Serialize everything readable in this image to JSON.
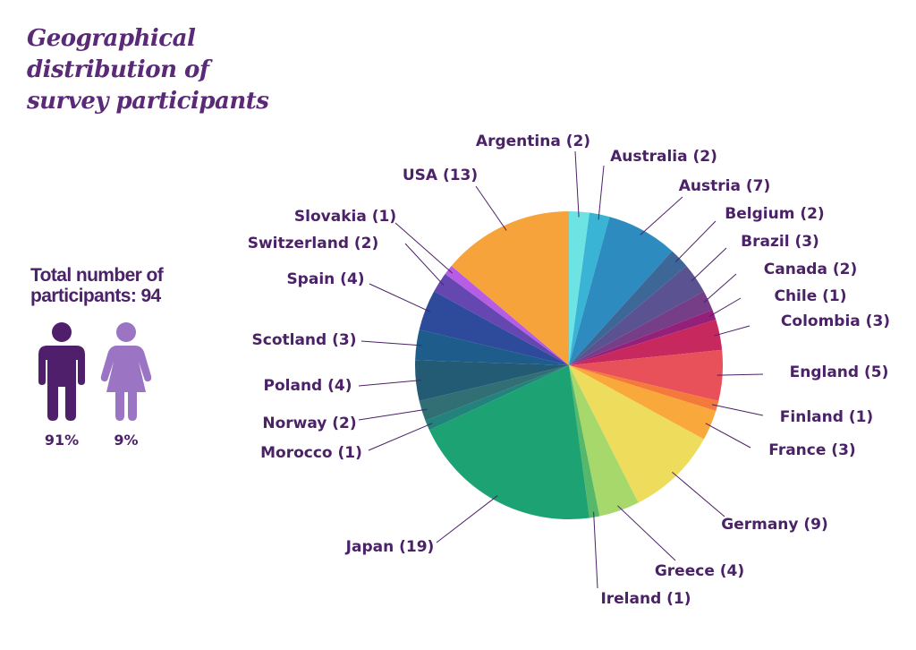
{
  "title_lines": [
    "Geographical",
    "distribution of",
    "survey participants"
  ],
  "total": {
    "line1": "Total number of",
    "line2": "participants: 94"
  },
  "gender": [
    {
      "icon": "male-person-icon",
      "percent": "91%",
      "color": "#4f1f6b"
    },
    {
      "icon": "female-person-icon",
      "percent": "9%",
      "color": "#9b74c4"
    }
  ],
  "chart_data": {
    "type": "pie",
    "title": "",
    "start": "12 o'clock",
    "direction": "clockwise",
    "total": 94,
    "slices": [
      {
        "label": "Argentina (2)",
        "value": 2,
        "color": "#6ee3e3"
      },
      {
        "label": "Australia (2)",
        "value": 2,
        "color": "#3ab4d4"
      },
      {
        "label": "Austria (7)",
        "value": 7,
        "color": "#2d8bbf"
      },
      {
        "label": "Belgium (2)",
        "value": 2,
        "color": "#3d6796"
      },
      {
        "label": "Brazil (3)",
        "value": 3,
        "color": "#5b5291"
      },
      {
        "label": "Canada (2)",
        "value": 2,
        "color": "#773e88"
      },
      {
        "label": "Chile (1)",
        "value": 1,
        "color": "#95207a"
      },
      {
        "label": "Colombia (3)",
        "value": 3,
        "color": "#c7295f"
      },
      {
        "label": "England (5)",
        "value": 5,
        "color": "#e8505a"
      },
      {
        "label": "Finland (1)",
        "value": 1,
        "color": "#f47a3c"
      },
      {
        "label": "France (3)",
        "value": 3,
        "color": "#f9a93c"
      },
      {
        "label": "Germany (9)",
        "value": 9,
        "color": "#eedc5c"
      },
      {
        "label": "Greece (4)",
        "value": 4,
        "color": "#a7d86c"
      },
      {
        "label": "Ireland (1)",
        "value": 1,
        "color": "#55b86a"
      },
      {
        "label": "Japan (19)",
        "value": 19,
        "color": "#1da373"
      },
      {
        "label": "Morocco (1)",
        "value": 1,
        "color": "#21837c"
      },
      {
        "label": "Norway (2)",
        "value": 2,
        "color": "#316f75"
      },
      {
        "label": "Poland (4)",
        "value": 4,
        "color": "#245b74"
      },
      {
        "label": "Scotland (3)",
        "value": 3,
        "color": "#1e5d8b"
      },
      {
        "label": "Spain (4)",
        "value": 4,
        "color": "#2e4a9b"
      },
      {
        "label": "Switzerland (2)",
        "value": 2,
        "color": "#6447b1"
      },
      {
        "label": "Slovakia (1)",
        "value": 1,
        "color": "#b75ce4"
      },
      {
        "label": "USA (13)",
        "value": 13,
        "color": "#f6a33c"
      }
    ]
  }
}
